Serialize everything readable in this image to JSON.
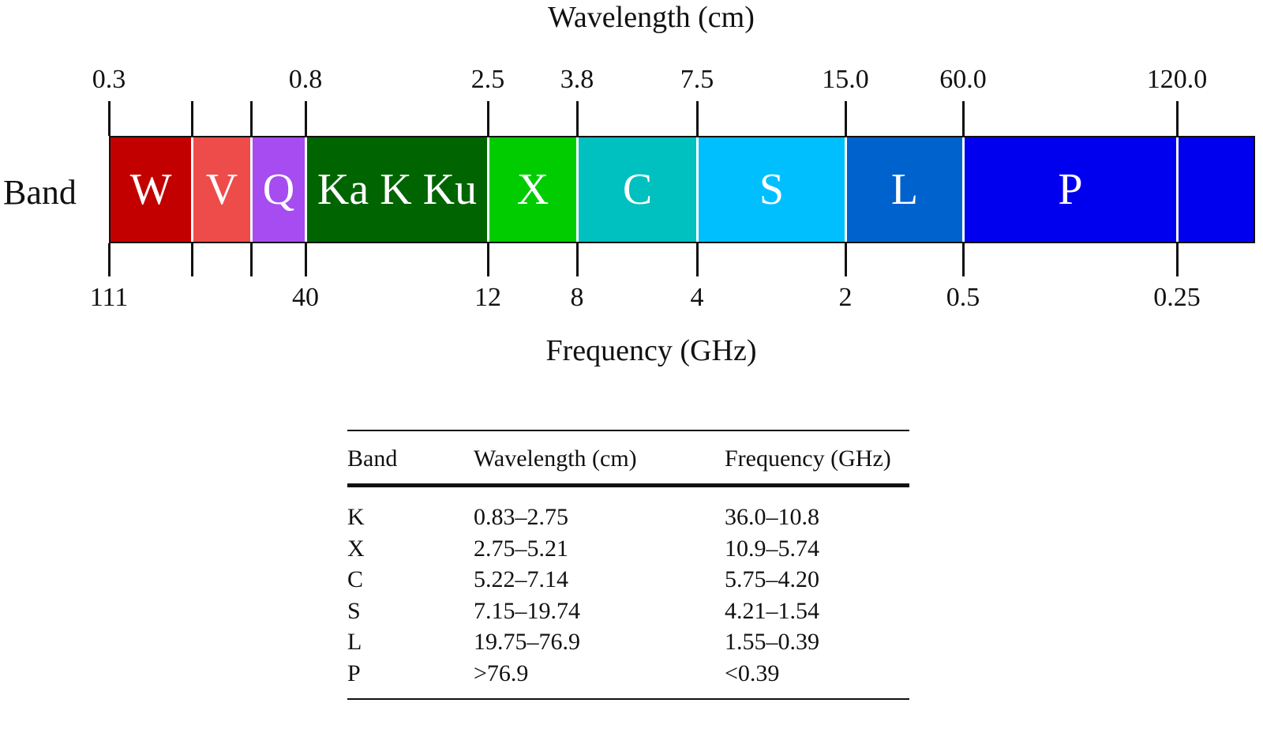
{
  "diagram": {
    "top_axis_title": "Wavelength (cm)",
    "bottom_axis_title": "Frequency (GHz)",
    "row_label": "Band",
    "wavelength_ticks": [
      "0.3",
      "0.8",
      "2.5",
      "3.8",
      "7.5",
      "15.0",
      "60.0",
      "120.0"
    ],
    "frequency_ticks": [
      "111",
      "40",
      "12",
      "8",
      "4",
      "2",
      "0.5",
      "0.25"
    ],
    "bands": [
      {
        "label": "W",
        "color": "#c30000"
      },
      {
        "label": "V",
        "color": "#ee4b4b"
      },
      {
        "label": "Q",
        "color": "#a64cf0"
      },
      {
        "label": "Ka K Ku",
        "color": "#006400"
      },
      {
        "label": "X",
        "color": "#00cc00"
      },
      {
        "label": "C",
        "color": "#00c0c0"
      },
      {
        "label": "S",
        "color": "#00bfff"
      },
      {
        "label": "L",
        "color": "#0062cc"
      },
      {
        "label": "P",
        "color": "#0000ee"
      },
      {
        "label": "",
        "color": "#0000ee"
      }
    ]
  },
  "table": {
    "headers": [
      "Band",
      "Wavelength (cm)",
      "Frequency (GHz)"
    ],
    "rows": [
      [
        "K",
        "0.83–2.75",
        "36.0–10.8"
      ],
      [
        "X",
        "2.75–5.21",
        "10.9–5.74"
      ],
      [
        "C",
        "5.22–7.14",
        "5.75–4.20"
      ],
      [
        "S",
        "7.15–19.74",
        "4.21–1.54"
      ],
      [
        "L",
        "19.75–76.9",
        "1.55–0.39"
      ],
      [
        "P",
        ">76.9",
        "<0.39"
      ]
    ]
  }
}
